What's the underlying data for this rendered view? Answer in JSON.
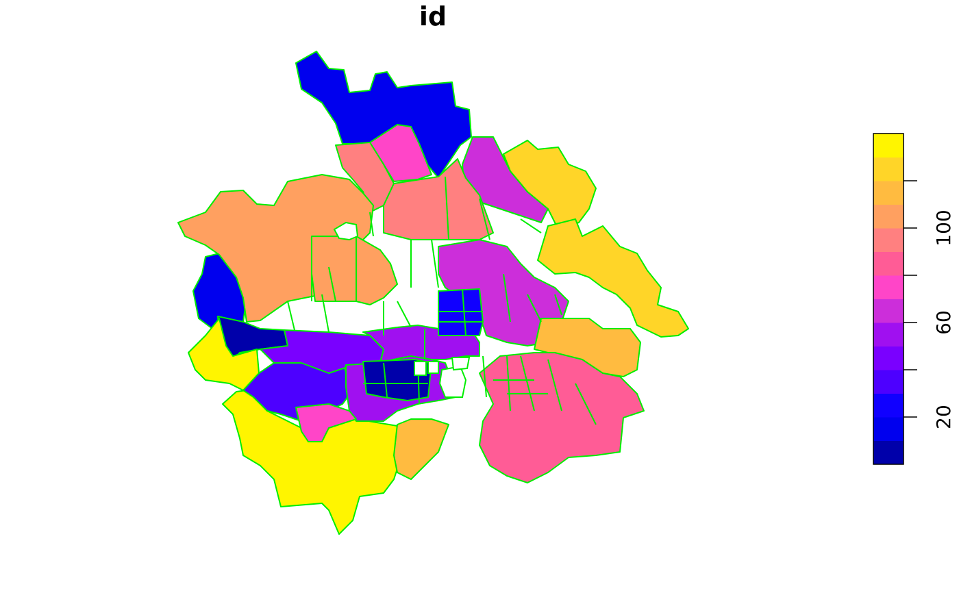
{
  "title": "id",
  "legend": {
    "ticks": [
      {
        "label": "20",
        "value": 20
      },
      {
        "label": "60",
        "value": 60
      },
      {
        "label": "100",
        "value": 100
      }
    ],
    "minor_ticks": [
      40,
      80,
      120
    ],
    "range": [
      0,
      140
    ],
    "palette": [
      "#0000AA",
      "#0000EE",
      "#1000FF",
      "#4D00FF",
      "#7A00FF",
      "#A010F0",
      "#CC2EDA",
      "#FF45C8",
      "#FF5C96",
      "#FF8080",
      "#FFA060",
      "#FFBB40",
      "#FFD528",
      "#FFF500"
    ]
  },
  "map": {
    "border_color": "#00EE00",
    "regions": [
      {
        "value": 12
      },
      {
        "value": 10
      },
      {
        "value": 75
      },
      {
        "value": 68
      },
      {
        "value": 124
      },
      {
        "value": 92
      },
      {
        "value": 98
      },
      {
        "value": 106
      },
      {
        "value": 100
      },
      {
        "value": 4
      },
      {
        "value": 138
      },
      {
        "value": 136
      },
      {
        "value": 30
      },
      {
        "value": 45
      },
      {
        "value": 55
      },
      {
        "value": 58
      },
      {
        "value": 76
      },
      {
        "value": 115
      },
      {
        "value": 64
      },
      {
        "value": 20
      },
      {
        "value": 2
      },
      {
        "value": 110
      },
      {
        "value": 120
      },
      {
        "value": 88
      }
    ]
  }
}
